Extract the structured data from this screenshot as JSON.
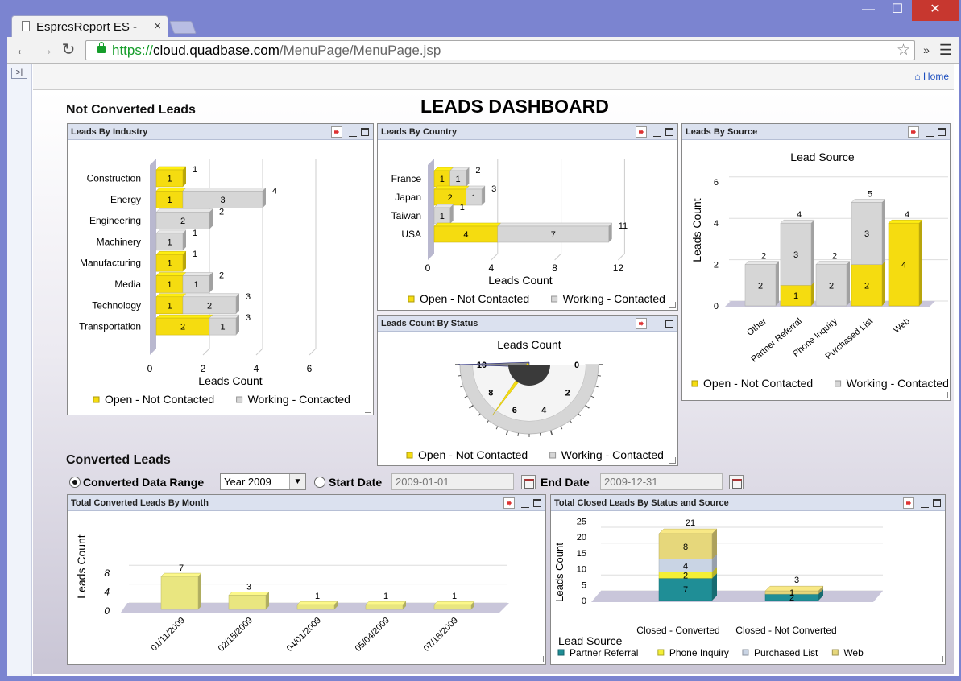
{
  "browser": {
    "tab_title": "EspresReport ES -",
    "tab_close": "×",
    "url_scheme": "https://",
    "url_host": "cloud.quadbase.com",
    "url_path": "/MenuPage/MenuPage.jsp",
    "extensions_label": "»"
  },
  "page": {
    "home_label": "Home",
    "title": "LEADS DASHBOARD",
    "section_not_converted": "Not Converted Leads",
    "section_converted": "Converted Leads"
  },
  "legend": {
    "open": "Open - Not Contacted",
    "working": "Working - Contacted"
  },
  "colors": {
    "open": "#f5dc10",
    "working": "#d6d6d6",
    "partner": "#1f8e96",
    "phone": "#f4ef36",
    "purchased": "#c9d4e4",
    "web": "#e6d77b",
    "month_bar": "#e9e680"
  },
  "panels": {
    "industry": {
      "title": "Leads By Industry"
    },
    "country": {
      "title": "Leads By Country"
    },
    "source": {
      "title": "Leads By Source"
    },
    "status": {
      "title": "Leads Count By Status"
    },
    "month": {
      "title": "Total Converted Leads By Month"
    },
    "closed": {
      "title": "Total Closed Leads By Status and Source"
    }
  },
  "controls": {
    "converted_range_label": "Converted Data Range",
    "year_value": "Year 2009",
    "start_date_label": "Start Date",
    "start_date_value": "2009-01-01",
    "end_date_label": "End Date",
    "end_date_value": "2009-12-31"
  },
  "chart_data": [
    {
      "id": "industry",
      "type": "bar",
      "orientation": "horizontal",
      "stacked": true,
      "categories": [
        "Construction",
        "Energy",
        "Engineering",
        "Machinery",
        "Manufacturing",
        "Media",
        "Technology",
        "Transportation"
      ],
      "series": [
        {
          "name": "Open - Not Contacted",
          "values": [
            1,
            1,
            0,
            0,
            1,
            1,
            1,
            2
          ]
        },
        {
          "name": "Working - Contacted",
          "values": [
            0,
            3,
            2,
            1,
            0,
            1,
            2,
            1
          ]
        }
      ],
      "totals": [
        1,
        4,
        2,
        1,
        1,
        2,
        3,
        3
      ],
      "xlabel": "Leads Count",
      "xticks": [
        "0",
        "2",
        "4",
        "6"
      ],
      "xlim": [
        0,
        6
      ]
    },
    {
      "id": "country",
      "type": "bar",
      "orientation": "horizontal",
      "stacked": true,
      "categories": [
        "France",
        "Japan",
        "Taiwan",
        "USA"
      ],
      "series": [
        {
          "name": "Open - Not Contacted",
          "values": [
            1,
            2,
            0,
            4
          ]
        },
        {
          "name": "Working - Contacted",
          "values": [
            1,
            1,
            1,
            7
          ]
        }
      ],
      "totals": [
        2,
        3,
        1,
        11
      ],
      "xlabel": "Leads Count",
      "xticks": [
        "0",
        "4",
        "8",
        "12"
      ],
      "xlim": [
        0,
        12
      ]
    },
    {
      "id": "source",
      "type": "bar",
      "stacked": true,
      "title": "Lead Source",
      "categories": [
        "Other",
        "Partner Referral",
        "Phone Inquiry",
        "Purchased List",
        "Web"
      ],
      "series": [
        {
          "name": "Open - Not Contacted",
          "values": [
            0,
            1,
            0,
            2,
            4
          ]
        },
        {
          "name": "Working - Contacted",
          "values": [
            2,
            3,
            2,
            3,
            0
          ]
        }
      ],
      "totals": [
        2,
        4,
        2,
        5,
        4
      ],
      "ylabel": "Leads Count",
      "yticks": [
        "0",
        "2",
        "4",
        "6"
      ],
      "ylim": [
        0,
        6
      ]
    },
    {
      "id": "status",
      "type": "gauge",
      "title": "Leads Count",
      "min": 0,
      "max": 10,
      "ticks": [
        "10",
        "8",
        "6",
        "4",
        "2",
        "0"
      ],
      "pointers": [
        {
          "name": "Open - Not Contacted",
          "value": 7
        },
        {
          "name": "Working - Contacted",
          "value": 10
        }
      ]
    },
    {
      "id": "month",
      "type": "bar",
      "categories": [
        "01/11/2009",
        "02/15/2009",
        "04/01/2009",
        "05/04/2009",
        "07/18/2009"
      ],
      "values": [
        7,
        3,
        1,
        1,
        1
      ],
      "ylabel": "Leads Count",
      "yticks": [
        "0",
        "4",
        "8"
      ],
      "ylim": [
        0,
        8
      ]
    },
    {
      "id": "closed",
      "type": "bar",
      "stacked": true,
      "categories": [
        "Closed - Converted",
        "Closed - Not Converted"
      ],
      "series": [
        {
          "name": "Partner Referral",
          "values": [
            7,
            2
          ]
        },
        {
          "name": "Phone Inquiry",
          "values": [
            2,
            0
          ]
        },
        {
          "name": "Purchased List",
          "values": [
            4,
            0
          ]
        },
        {
          "name": "Web",
          "values": [
            8,
            1
          ]
        }
      ],
      "totals": [
        21,
        3
      ],
      "ylabel": "Leads Count",
      "xlabel": "Lead Source",
      "yticks": [
        "0",
        "5",
        "10",
        "15",
        "20",
        "25"
      ],
      "ylim": [
        0,
        25
      ]
    }
  ]
}
